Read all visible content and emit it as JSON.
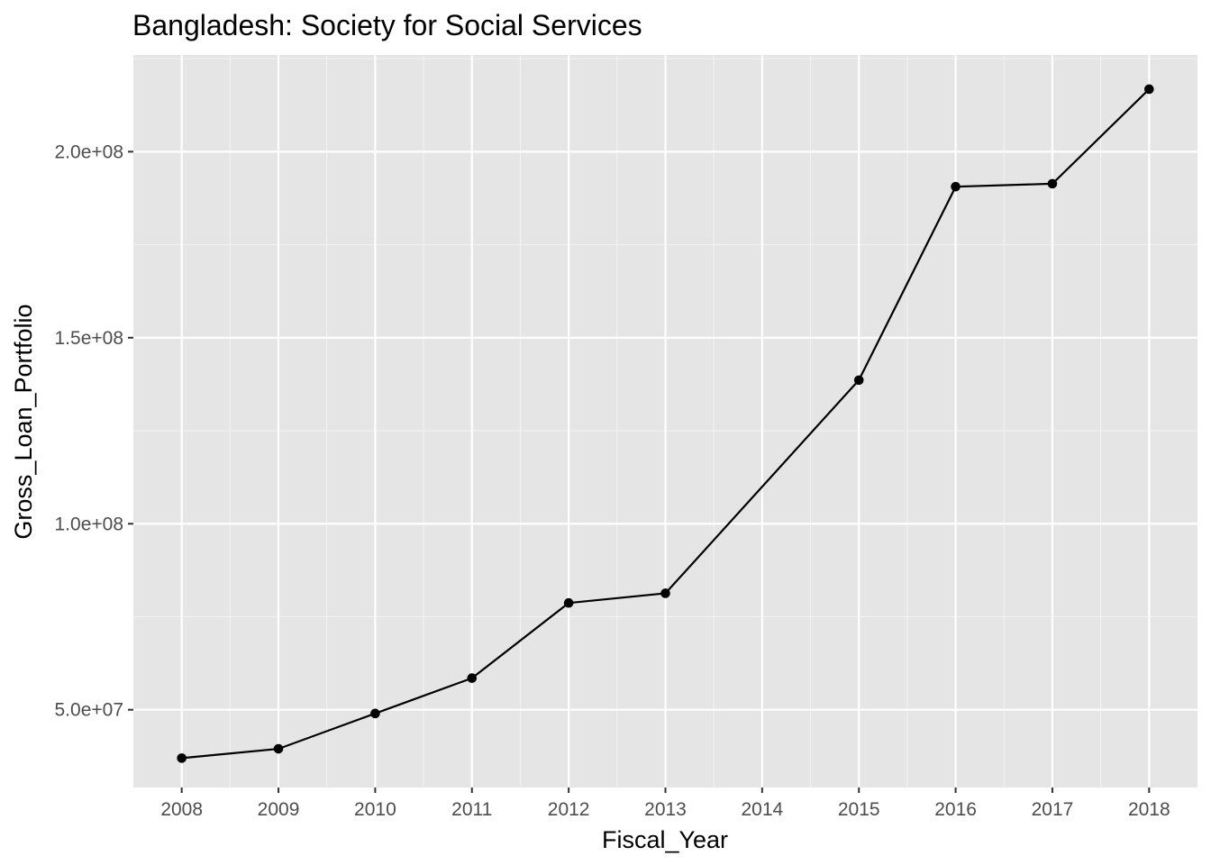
{
  "chart_data": {
    "type": "line",
    "title": "Bangladesh:  Society for Social Services",
    "xlabel": "Fiscal_Year",
    "ylabel": "Gross_Loan_Portfolio",
    "x": [
      2008,
      2009,
      2010,
      2011,
      2012,
      2013,
      2015,
      2016,
      2017,
      2018
    ],
    "series": [
      {
        "values": [
          37000000,
          39500000,
          49000000,
          58500000,
          78700000,
          81300000,
          138600000,
          190600000,
          191400000,
          216800000
        ]
      }
    ],
    "xlim": [
      2007.5,
      2018.5
    ],
    "ylim": [
      29100000,
      226000000
    ],
    "x_ticks": [
      2008,
      2009,
      2010,
      2011,
      2012,
      2013,
      2014,
      2015,
      2016,
      2017,
      2018
    ],
    "x_tick_labels": [
      "2008",
      "2009",
      "2010",
      "2011",
      "2012",
      "2013",
      "2014",
      "2015",
      "2016",
      "2017",
      "2018"
    ],
    "y_ticks": [
      50000000,
      100000000,
      150000000,
      200000000
    ],
    "y_tick_labels": [
      "5.0e+07",
      "1.0e+08",
      "1.5e+08",
      "2.0e+08"
    ],
    "grid": true,
    "legend": "none",
    "colors": {
      "panel_background": "#e5e5e5",
      "grid_major": "#ffffff",
      "grid_minor": "#f2f2f2",
      "line": "#000000",
      "point": "#000000",
      "tick_label": "#4d4d4d"
    }
  }
}
